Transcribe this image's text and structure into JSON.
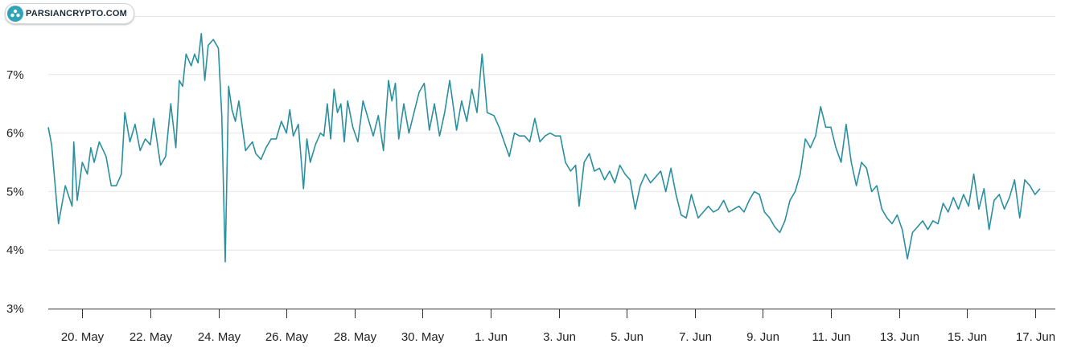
{
  "logo": {
    "text": "PARSIANCRYPTO.COM"
  },
  "colors": {
    "line": "#2a8f9e",
    "grid": "#e6e6e6",
    "axis": "#333333"
  },
  "chart_data": {
    "type": "line",
    "title": "",
    "xlabel": "",
    "ylabel": "",
    "ylim": [
      3,
      8
    ],
    "y_ticks": [
      3,
      4,
      5,
      6,
      7
    ],
    "y_tick_labels": [
      "3%",
      "4%",
      "5%",
      "6%",
      "7%"
    ],
    "x_ticks": [
      20,
      22,
      24,
      26,
      28,
      30,
      32,
      34,
      36,
      38,
      40,
      42,
      44,
      46,
      48
    ],
    "x_tick_labels": [
      "20. May",
      "22. May",
      "24. May",
      "26. May",
      "28. May",
      "30. May",
      "1. Jun",
      "3. Jun",
      "5. Jun",
      "7. Jun",
      "9. Jun",
      "11. Jun",
      "13. Jun",
      "15. Jun",
      "17. Jun"
    ],
    "x_unit": "day (May numbering; 32 = 1 Jun)",
    "grid": true,
    "series": [
      {
        "values": [
          [
            19.0,
            6.1
          ],
          [
            19.1,
            5.8
          ],
          [
            19.3,
            4.45
          ],
          [
            19.5,
            5.1
          ],
          [
            19.7,
            4.75
          ],
          [
            19.75,
            5.85
          ],
          [
            19.85,
            4.85
          ],
          [
            20.0,
            5.5
          ],
          [
            20.15,
            5.3
          ],
          [
            20.25,
            5.75
          ],
          [
            20.35,
            5.5
          ],
          [
            20.5,
            5.85
          ],
          [
            20.7,
            5.6
          ],
          [
            20.85,
            5.1
          ],
          [
            21.0,
            5.1
          ],
          [
            21.15,
            5.3
          ],
          [
            21.25,
            6.35
          ],
          [
            21.4,
            5.85
          ],
          [
            21.55,
            6.15
          ],
          [
            21.7,
            5.7
          ],
          [
            21.85,
            5.9
          ],
          [
            22.0,
            5.8
          ],
          [
            22.1,
            6.25
          ],
          [
            22.3,
            5.45
          ],
          [
            22.45,
            5.6
          ],
          [
            22.6,
            6.5
          ],
          [
            22.75,
            5.75
          ],
          [
            22.85,
            6.9
          ],
          [
            22.95,
            6.8
          ],
          [
            23.05,
            7.35
          ],
          [
            23.2,
            7.15
          ],
          [
            23.3,
            7.35
          ],
          [
            23.4,
            7.2
          ],
          [
            23.5,
            7.7
          ],
          [
            23.6,
            6.9
          ],
          [
            23.7,
            7.5
          ],
          [
            23.85,
            7.6
          ],
          [
            24.0,
            7.45
          ],
          [
            24.1,
            6.3
          ],
          [
            24.2,
            3.8
          ],
          [
            24.3,
            6.8
          ],
          [
            24.4,
            6.4
          ],
          [
            24.5,
            6.2
          ],
          [
            24.6,
            6.55
          ],
          [
            24.8,
            5.7
          ],
          [
            25.0,
            5.85
          ],
          [
            25.1,
            5.65
          ],
          [
            25.25,
            5.55
          ],
          [
            25.4,
            5.75
          ],
          [
            25.55,
            5.9
          ],
          [
            25.7,
            5.9
          ],
          [
            25.85,
            6.2
          ],
          [
            26.0,
            6.0
          ],
          [
            26.1,
            6.4
          ],
          [
            26.2,
            5.95
          ],
          [
            26.35,
            6.15
          ],
          [
            26.5,
            5.05
          ],
          [
            26.6,
            5.9
          ],
          [
            26.7,
            5.5
          ],
          [
            26.85,
            5.8
          ],
          [
            27.0,
            6.0
          ],
          [
            27.1,
            5.95
          ],
          [
            27.2,
            6.5
          ],
          [
            27.3,
            5.9
          ],
          [
            27.4,
            6.75
          ],
          [
            27.5,
            6.35
          ],
          [
            27.6,
            6.5
          ],
          [
            27.7,
            5.85
          ],
          [
            27.8,
            6.55
          ],
          [
            27.95,
            6.1
          ],
          [
            28.1,
            5.85
          ],
          [
            28.25,
            6.55
          ],
          [
            28.4,
            6.25
          ],
          [
            28.55,
            5.95
          ],
          [
            28.7,
            6.3
          ],
          [
            28.85,
            5.7
          ],
          [
            29.0,
            6.9
          ],
          [
            29.1,
            6.55
          ],
          [
            29.2,
            6.85
          ],
          [
            29.3,
            5.9
          ],
          [
            29.45,
            6.5
          ],
          [
            29.6,
            6.0
          ],
          [
            29.75,
            6.35
          ],
          [
            29.9,
            6.7
          ],
          [
            30.05,
            6.85
          ],
          [
            30.2,
            6.05
          ],
          [
            30.35,
            6.5
          ],
          [
            30.5,
            5.95
          ],
          [
            30.65,
            6.35
          ],
          [
            30.8,
            6.9
          ],
          [
            31.0,
            6.05
          ],
          [
            31.15,
            6.55
          ],
          [
            31.3,
            6.2
          ],
          [
            31.45,
            6.75
          ],
          [
            31.6,
            6.35
          ],
          [
            31.75,
            7.35
          ],
          [
            31.9,
            6.35
          ],
          [
            32.1,
            6.3
          ],
          [
            32.25,
            6.1
          ],
          [
            32.4,
            5.85
          ],
          [
            32.55,
            5.6
          ],
          [
            32.7,
            6.0
          ],
          [
            32.85,
            5.95
          ],
          [
            33.0,
            5.95
          ],
          [
            33.15,
            5.85
          ],
          [
            33.3,
            6.25
          ],
          [
            33.45,
            5.85
          ],
          [
            33.6,
            5.95
          ],
          [
            33.75,
            6.0
          ],
          [
            33.9,
            5.95
          ],
          [
            34.05,
            5.95
          ],
          [
            34.2,
            5.5
          ],
          [
            34.35,
            5.35
          ],
          [
            34.5,
            5.45
          ],
          [
            34.6,
            4.75
          ],
          [
            34.75,
            5.5
          ],
          [
            34.9,
            5.65
          ],
          [
            35.05,
            5.35
          ],
          [
            35.2,
            5.4
          ],
          [
            35.35,
            5.2
          ],
          [
            35.5,
            5.35
          ],
          [
            35.65,
            5.15
          ],
          [
            35.8,
            5.45
          ],
          [
            35.95,
            5.3
          ],
          [
            36.1,
            5.2
          ],
          [
            36.25,
            4.7
          ],
          [
            36.4,
            5.1
          ],
          [
            36.55,
            5.3
          ],
          [
            36.7,
            5.15
          ],
          [
            36.85,
            5.25
          ],
          [
            37.0,
            5.35
          ],
          [
            37.15,
            5.0
          ],
          [
            37.3,
            5.4
          ],
          [
            37.45,
            4.95
          ],
          [
            37.6,
            4.6
          ],
          [
            37.75,
            4.55
          ],
          [
            37.9,
            4.95
          ],
          [
            38.1,
            4.55
          ],
          [
            38.25,
            4.65
          ],
          [
            38.4,
            4.75
          ],
          [
            38.55,
            4.65
          ],
          [
            38.7,
            4.7
          ],
          [
            38.85,
            4.85
          ],
          [
            39.0,
            4.65
          ],
          [
            39.15,
            4.7
          ],
          [
            39.3,
            4.75
          ],
          [
            39.45,
            4.65
          ],
          [
            39.6,
            4.85
          ],
          [
            39.75,
            5.0
          ],
          [
            39.9,
            4.95
          ],
          [
            40.05,
            4.65
          ],
          [
            40.2,
            4.55
          ],
          [
            40.35,
            4.4
          ],
          [
            40.5,
            4.3
          ],
          [
            40.65,
            4.5
          ],
          [
            40.8,
            4.85
          ],
          [
            40.95,
            5.0
          ],
          [
            41.1,
            5.3
          ],
          [
            41.25,
            5.9
          ],
          [
            41.4,
            5.75
          ],
          [
            41.55,
            5.95
          ],
          [
            41.7,
            6.45
          ],
          [
            41.85,
            6.1
          ],
          [
            42.0,
            6.1
          ],
          [
            42.15,
            5.75
          ],
          [
            42.3,
            5.5
          ],
          [
            42.45,
            6.15
          ],
          [
            42.6,
            5.5
          ],
          [
            42.75,
            5.1
          ],
          [
            42.9,
            5.5
          ],
          [
            43.05,
            5.4
          ],
          [
            43.2,
            5.0
          ],
          [
            43.35,
            5.1
          ],
          [
            43.5,
            4.7
          ],
          [
            43.65,
            4.55
          ],
          [
            43.8,
            4.45
          ],
          [
            43.95,
            4.6
          ],
          [
            44.1,
            4.35
          ],
          [
            44.25,
            3.85
          ],
          [
            44.4,
            4.3
          ],
          [
            44.55,
            4.4
          ],
          [
            44.7,
            4.5
          ],
          [
            44.85,
            4.35
          ],
          [
            45.0,
            4.5
          ],
          [
            45.15,
            4.45
          ],
          [
            45.3,
            4.8
          ],
          [
            45.45,
            4.65
          ],
          [
            45.6,
            4.9
          ],
          [
            45.75,
            4.7
          ],
          [
            45.9,
            4.95
          ],
          [
            46.05,
            4.75
          ],
          [
            46.2,
            5.3
          ],
          [
            46.35,
            4.7
          ],
          [
            46.5,
            5.05
          ],
          [
            46.65,
            4.35
          ],
          [
            46.8,
            4.85
          ],
          [
            46.95,
            4.95
          ],
          [
            47.1,
            4.7
          ],
          [
            47.25,
            4.9
          ],
          [
            47.4,
            5.2
          ],
          [
            47.55,
            4.55
          ],
          [
            47.7,
            5.2
          ],
          [
            47.85,
            5.1
          ],
          [
            48.0,
            4.95
          ],
          [
            48.15,
            5.05
          ]
        ]
      }
    ]
  }
}
